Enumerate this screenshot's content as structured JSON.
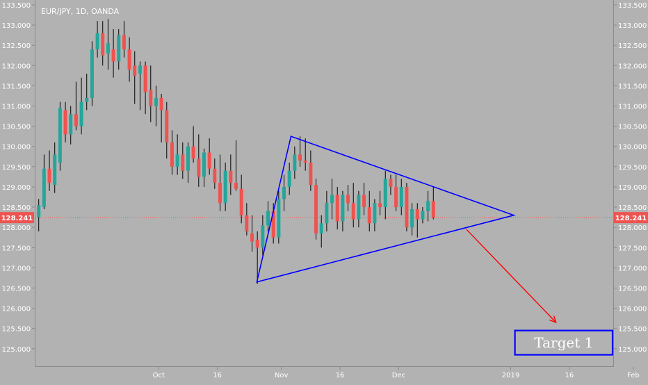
{
  "chart_data": {
    "type": "candlestick",
    "title": "EUR/JPY, 1D, OANDA",
    "last_price_label": "128.241",
    "last_price": 128.241,
    "ylim": [
      124.55,
      133.62
    ],
    "y_ticks": [
      "125.000",
      "125.500",
      "126.000",
      "126.500",
      "127.000",
      "127.500",
      "128.000",
      "128.500",
      "129.000",
      "129.500",
      "130.000",
      "130.500",
      "131.000",
      "131.500",
      "132.000",
      "132.500",
      "133.000",
      "133.500"
    ],
    "x_ticks": [
      {
        "label": "Oct",
        "bar": 22.5
      },
      {
        "label": "16",
        "bar": 33.5
      },
      {
        "label": "Nov",
        "bar": 45.5
      },
      {
        "label": "16",
        "bar": 56.5
      },
      {
        "label": "Dec",
        "bar": 67.5
      },
      {
        "label": "2019",
        "bar": 88.5
      },
      {
        "label": "16",
        "bar": 99.5
      },
      {
        "label": "Feb",
        "bar": 111.5
      }
    ],
    "colors": {
      "up": "#26a69a",
      "down": "#ef5350",
      "wick": "#000000",
      "price_line": "#ef5350",
      "pattern": "#0000ff",
      "arrow": "#ff0000",
      "target_box": "#0000ff",
      "target_text": "#ffffff"
    },
    "candles": [
      {
        "o": 128.25,
        "h": 128.7,
        "l": 127.9,
        "c": 128.55
      },
      {
        "o": 128.5,
        "h": 129.8,
        "l": 128.45,
        "c": 129.45
      },
      {
        "o": 129.45,
        "h": 129.9,
        "l": 128.9,
        "c": 129.1
      },
      {
        "o": 129.05,
        "h": 130.1,
        "l": 128.85,
        "c": 129.8
      },
      {
        "o": 129.6,
        "h": 131.1,
        "l": 129.4,
        "c": 130.95
      },
      {
        "o": 130.9,
        "h": 131.1,
        "l": 130.1,
        "c": 130.3
      },
      {
        "o": 130.3,
        "h": 131.0,
        "l": 130.05,
        "c": 130.8
      },
      {
        "o": 130.8,
        "h": 131.6,
        "l": 130.4,
        "c": 130.5
      },
      {
        "o": 130.5,
        "h": 131.7,
        "l": 130.3,
        "c": 131.1
      },
      {
        "o": 131.1,
        "h": 131.8,
        "l": 130.9,
        "c": 131.2
      },
      {
        "o": 131.2,
        "h": 132.6,
        "l": 131.0,
        "c": 132.4
      },
      {
        "o": 132.4,
        "h": 133.1,
        "l": 132.2,
        "c": 132.8
      },
      {
        "o": 132.8,
        "h": 133.1,
        "l": 132.0,
        "c": 132.25
      },
      {
        "o": 132.3,
        "h": 133.15,
        "l": 131.9,
        "c": 132.55
      },
      {
        "o": 132.4,
        "h": 132.9,
        "l": 131.7,
        "c": 132.1
      },
      {
        "o": 132.1,
        "h": 132.9,
        "l": 131.9,
        "c": 132.75
      },
      {
        "o": 132.75,
        "h": 133.1,
        "l": 132.2,
        "c": 132.4
      },
      {
        "o": 132.4,
        "h": 132.7,
        "l": 131.6,
        "c": 131.9
      },
      {
        "o": 132.0,
        "h": 132.35,
        "l": 131.05,
        "c": 131.75
      },
      {
        "o": 131.8,
        "h": 132.1,
        "l": 130.9,
        "c": 132.0
      },
      {
        "o": 132.0,
        "h": 132.1,
        "l": 130.8,
        "c": 131.35
      },
      {
        "o": 131.4,
        "h": 132.0,
        "l": 130.6,
        "c": 131.0
      },
      {
        "o": 131.0,
        "h": 131.5,
        "l": 130.5,
        "c": 131.2
      },
      {
        "o": 131.2,
        "h": 131.3,
        "l": 130.1,
        "c": 130.9
      },
      {
        "o": 130.9,
        "h": 131.1,
        "l": 129.7,
        "c": 130.1
      },
      {
        "o": 130.1,
        "h": 130.4,
        "l": 129.3,
        "c": 129.5
      },
      {
        "o": 129.5,
        "h": 130.3,
        "l": 129.3,
        "c": 129.8
      },
      {
        "o": 129.8,
        "h": 130.1,
        "l": 129.2,
        "c": 129.4
      },
      {
        "o": 129.4,
        "h": 130.1,
        "l": 129.1,
        "c": 130.0
      },
      {
        "o": 130.0,
        "h": 130.5,
        "l": 129.6,
        "c": 129.7
      },
      {
        "o": 129.7,
        "h": 130.3,
        "l": 129.0,
        "c": 129.25
      },
      {
        "o": 129.25,
        "h": 129.95,
        "l": 129.0,
        "c": 129.85
      },
      {
        "o": 129.85,
        "h": 130.2,
        "l": 129.3,
        "c": 129.45
      },
      {
        "o": 129.45,
        "h": 129.7,
        "l": 128.95,
        "c": 129.1
      },
      {
        "o": 129.1,
        "h": 129.8,
        "l": 128.4,
        "c": 128.6
      },
      {
        "o": 128.6,
        "h": 129.6,
        "l": 128.4,
        "c": 129.4
      },
      {
        "o": 129.4,
        "h": 129.8,
        "l": 128.8,
        "c": 129.1
      },
      {
        "o": 129.1,
        "h": 130.15,
        "l": 128.9,
        "c": 128.95
      },
      {
        "o": 128.95,
        "h": 129.3,
        "l": 128.1,
        "c": 128.3
      },
      {
        "o": 128.3,
        "h": 128.6,
        "l": 127.8,
        "c": 127.9
      },
      {
        "o": 127.85,
        "h": 128.3,
        "l": 127.4,
        "c": 127.65
      },
      {
        "o": 127.7,
        "h": 127.9,
        "l": 126.6,
        "c": 127.5
      },
      {
        "o": 127.5,
        "h": 128.3,
        "l": 127.3,
        "c": 128.05
      },
      {
        "o": 128.05,
        "h": 128.65,
        "l": 127.9,
        "c": 128.4
      },
      {
        "o": 128.4,
        "h": 128.6,
        "l": 127.6,
        "c": 127.75
      },
      {
        "o": 127.75,
        "h": 128.9,
        "l": 127.6,
        "c": 128.7
      },
      {
        "o": 128.7,
        "h": 129.3,
        "l": 128.4,
        "c": 129.0
      },
      {
        "o": 129.0,
        "h": 129.6,
        "l": 128.8,
        "c": 129.4
      },
      {
        "o": 129.4,
        "h": 130.0,
        "l": 129.2,
        "c": 129.8
      },
      {
        "o": 129.8,
        "h": 130.25,
        "l": 129.5,
        "c": 129.65
      },
      {
        "o": 129.65,
        "h": 130.2,
        "l": 129.4,
        "c": 129.6
      },
      {
        "o": 129.6,
        "h": 129.9,
        "l": 128.9,
        "c": 129.05
      },
      {
        "o": 129.05,
        "h": 129.2,
        "l": 127.7,
        "c": 127.85
      },
      {
        "o": 127.85,
        "h": 128.3,
        "l": 127.5,
        "c": 128.1
      },
      {
        "o": 128.1,
        "h": 128.9,
        "l": 127.9,
        "c": 128.6
      },
      {
        "o": 128.6,
        "h": 129.2,
        "l": 128.2,
        "c": 128.8
      },
      {
        "o": 128.8,
        "h": 129.0,
        "l": 127.95,
        "c": 128.15
      },
      {
        "o": 128.15,
        "h": 128.9,
        "l": 127.9,
        "c": 128.8
      },
      {
        "o": 128.8,
        "h": 129.05,
        "l": 128.4,
        "c": 128.6
      },
      {
        "o": 128.6,
        "h": 129.1,
        "l": 128.0,
        "c": 128.2
      },
      {
        "o": 128.2,
        "h": 128.9,
        "l": 128.0,
        "c": 128.8
      },
      {
        "o": 128.8,
        "h": 129.1,
        "l": 128.3,
        "c": 128.5
      },
      {
        "o": 128.5,
        "h": 128.9,
        "l": 127.9,
        "c": 128.1
      },
      {
        "o": 128.1,
        "h": 128.7,
        "l": 127.9,
        "c": 128.6
      },
      {
        "o": 128.6,
        "h": 128.9,
        "l": 128.3,
        "c": 128.5
      },
      {
        "o": 128.5,
        "h": 129.4,
        "l": 128.2,
        "c": 129.2
      },
      {
        "o": 129.2,
        "h": 129.3,
        "l": 128.8,
        "c": 129.0
      },
      {
        "o": 129.0,
        "h": 129.3,
        "l": 128.4,
        "c": 128.5
      },
      {
        "o": 128.5,
        "h": 129.2,
        "l": 128.3,
        "c": 129.0
      },
      {
        "o": 129.0,
        "h": 129.1,
        "l": 127.9,
        "c": 128.0
      },
      {
        "o": 128.0,
        "h": 128.6,
        "l": 127.8,
        "c": 128.45
      },
      {
        "o": 128.45,
        "h": 128.6,
        "l": 127.75,
        "c": 128.2
      },
      {
        "o": 128.2,
        "h": 128.5,
        "l": 128.1,
        "c": 128.4
      },
      {
        "o": 128.4,
        "h": 128.9,
        "l": 128.15,
        "c": 128.65
      },
      {
        "o": 128.65,
        "h": 129.0,
        "l": 128.2,
        "c": 128.24
      }
    ],
    "triangle": [
      {
        "bar": 40.9,
        "price": 126.65
      },
      {
        "bar": 47.3,
        "price": 130.25
      },
      {
        "bar": 89.1,
        "price": 128.3
      }
    ],
    "arrow": {
      "from": {
        "bar": 80.2,
        "price": 127.95
      },
      "to": {
        "bar": 97.0,
        "price": 125.65
      }
    },
    "target": {
      "label": "Target 1",
      "bar_start": 89.3,
      "bar_end": 112.3,
      "price_top": 125.45,
      "price_bottom": 124.85
    }
  }
}
